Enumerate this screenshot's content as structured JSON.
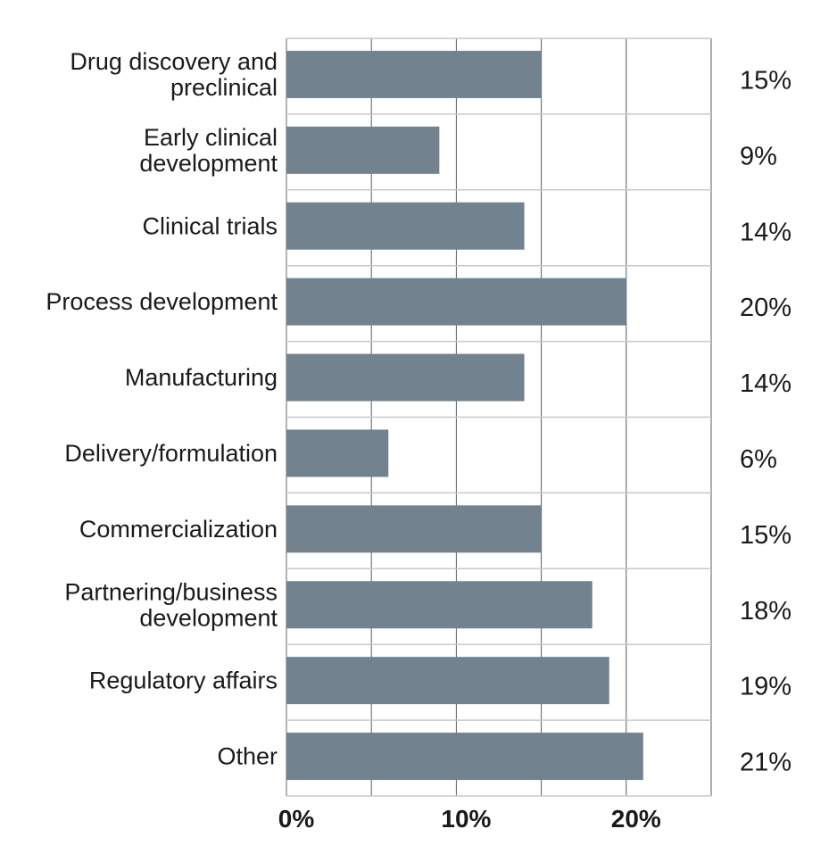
{
  "chart_data": {
    "type": "bar",
    "orientation": "horizontal",
    "categories": [
      [
        "Drug discovery and",
        "preclinical"
      ],
      [
        "Early clinical",
        "development"
      ],
      [
        "Clinical trials"
      ],
      [
        "Process development"
      ],
      [
        "Manufacturing"
      ],
      [
        "Delivery/formulation"
      ],
      [
        "Commercialization"
      ],
      [
        "Partnering/business",
        "development"
      ],
      [
        "Regulatory affairs"
      ],
      [
        "Other"
      ]
    ],
    "values": [
      15,
      9,
      14,
      20,
      14,
      6,
      15,
      18,
      19,
      21
    ],
    "value_labels": [
      "15%",
      "9%",
      "14%",
      "20%",
      "14%",
      "6%",
      "15%",
      "18%",
      "19%",
      "21%"
    ],
    "xlim": [
      0,
      25
    ],
    "xticks": [
      0,
      10,
      20
    ],
    "xtick_labels": [
      "0%",
      "10%",
      "20%"
    ],
    "grid_step": 5,
    "grid": true,
    "bar_color": "#72828f",
    "grid_color": "#c8c8c8",
    "title": "",
    "xlabel": "",
    "ylabel": ""
  }
}
